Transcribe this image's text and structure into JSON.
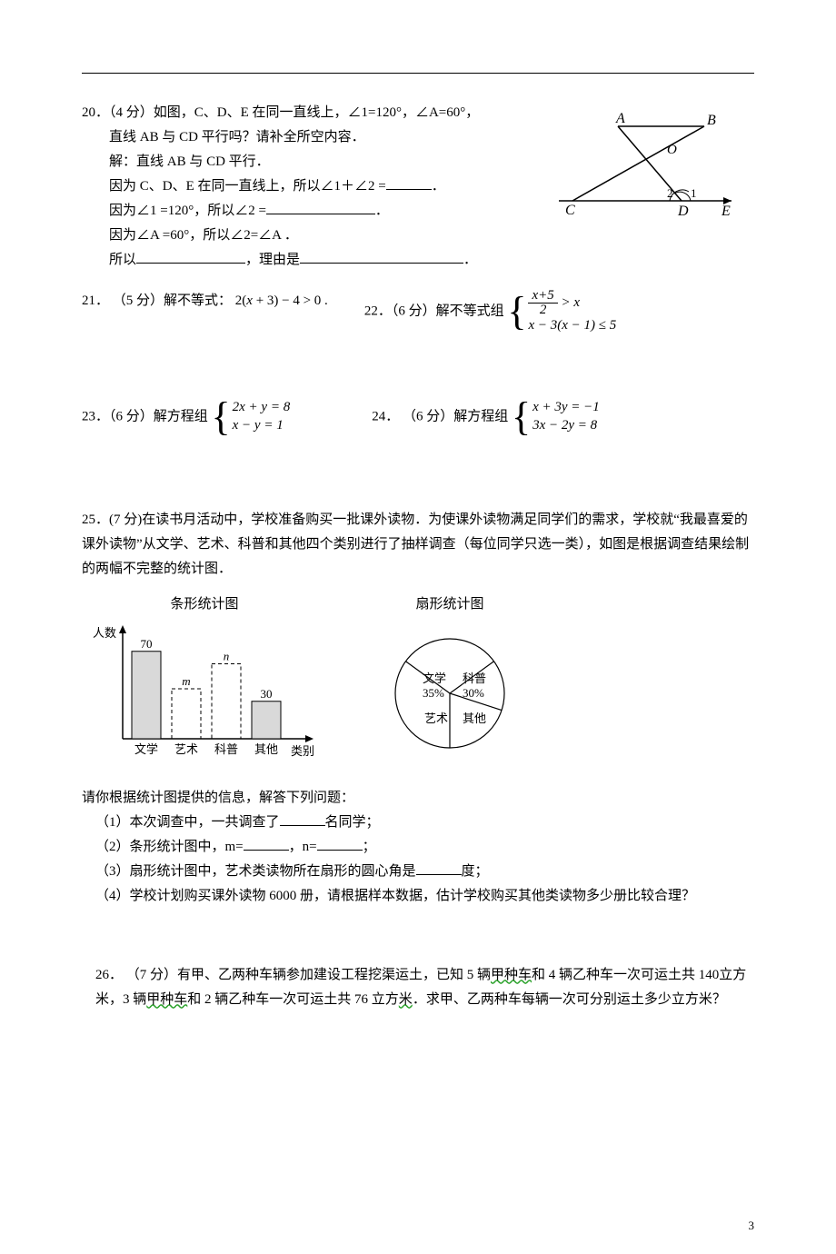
{
  "page_number": "3",
  "q20": {
    "stem": "20．（4 分）如图，C、D、E 在同一直线上，∠1=120°，∠A=60°，",
    "ask": "直线 AB 与 CD 平行吗？请补全所空内容．",
    "sol_label": "解：直线 AB 与 CD 平行．",
    "line1_a": "因为 C、D、E 在同一直线上，所以∠1＋∠2 =",
    "line1_b": "．",
    "line2_a": "因为∠1 =120°，所以∠2 =",
    "line2_b": "．",
    "line3": "因为∠A =60°，所以∠2=∠A ．",
    "line4_a": "所以",
    "line4_b": "，理由是",
    "line4_c": "．",
    "fig": {
      "A": "A",
      "B": "B",
      "C": "C",
      "D": "D",
      "E": "E",
      "O": "O",
      "ang1": "1",
      "ang2": "2"
    }
  },
  "q21": {
    "label": "21． （5 分）解不等式：",
    "expr": "2(x + 3) − 4 > 0 ."
  },
  "q22": {
    "label": "22．（6 分）解不等式组",
    "line1_num": "x+5",
    "line1_den": "2",
    "line1_rest": " > x",
    "line2": "x − 3(x − 1) ≤ 5"
  },
  "q23": {
    "label": "23．（6 分）解方程组",
    "line1": "2x + y = 8",
    "line2": "x − y = 1"
  },
  "q24": {
    "label": "24． （6 分）解方程组",
    "line1": "x + 3y = −1",
    "line2": "3x − 2y = 8"
  },
  "q25": {
    "stem": "25．(7 分)在读书月活动中，学校准备购买一批课外读物．为使课外读物满足同学们的需求，学校就“我最喜爱的课外读物”从文学、艺术、科普和其他四个类别进行了抽样调查（每位同学只选一类），如图是根据调查结果绘制的两幅不完整的统计图．",
    "bar_title": "条形统计图",
    "pie_title": "扇形统计图",
    "bar": {
      "y_label": "人数",
      "x_label": "类别",
      "categories": [
        "文学",
        "艺术",
        "科普",
        "其他"
      ],
      "values_label": [
        "70",
        "m",
        "n",
        "30"
      ],
      "heights": [
        70,
        40,
        60,
        30
      ],
      "dashed": [
        false,
        true,
        true,
        false
      ],
      "bar_fill": "#d9d9d9",
      "axis_color": "#000000"
    },
    "pie": {
      "slices": [
        {
          "label": "文学",
          "pct": "35%",
          "start": 180,
          "end": 306
        },
        {
          "label": "科普",
          "pct": "30%",
          "start": 306,
          "end": 54
        },
        {
          "label": "其他",
          "pct": "",
          "start": 54,
          "end": 108
        },
        {
          "label": "艺术",
          "pct": "",
          "start": 108,
          "end": 180
        }
      ],
      "stroke": "#000000"
    },
    "after": "请你根据统计图提供的信息，解答下列问题：",
    "s1_a": "（1）本次调查中，一共调查了",
    "s1_b": "名同学；",
    "s2_a": "（2）条形统计图中，m=",
    "s2_b": "，n=",
    "s2_c": "；",
    "s3_a": "（3）扇形统计图中，艺术类读物所在扇形的圆心角是",
    "s3_b": "度；",
    "s4": "（4）学校计划购买课外读物 6000 册，请根据样本数据，估计学校购买其他类读物多少册比较合理？"
  },
  "q26": {
    "text_a": "26． （7 分）有甲、乙两种车辆参加建设工程挖渠运土，已知 5 辆",
    "wavy1": "甲种车",
    "text_b": "和 4 辆乙种车一次可运土共 140立方米，3 辆",
    "wavy2": "甲种车",
    "text_c": "和 2 辆乙种车一次可运土共 76 立方",
    "wavy3": "米",
    "text_d": "．求甲、乙两种车每辆一次可分别运土多少立方米？"
  }
}
